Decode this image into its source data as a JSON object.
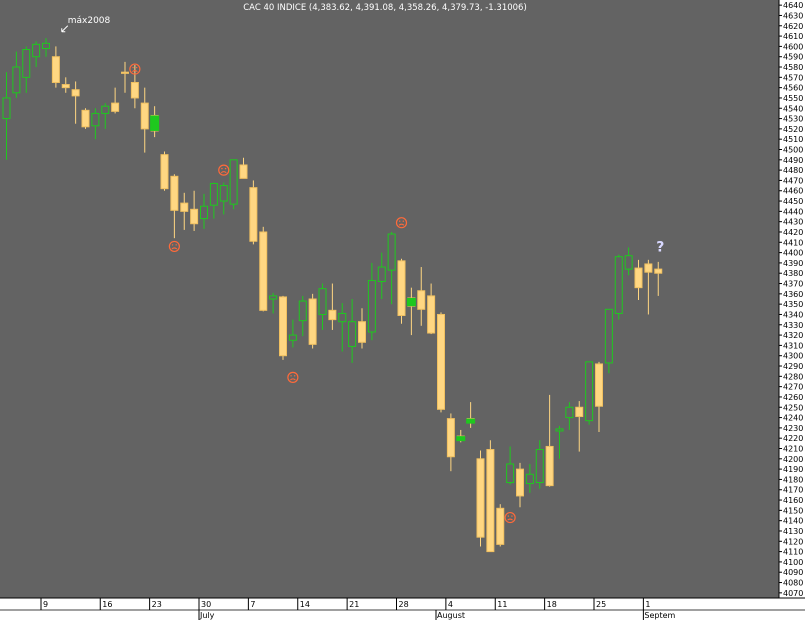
{
  "chart_data": {
    "type": "candlestick",
    "title": "CAC 40 INDICE (4,383.62, 4,391.08, 4,358.26, 4,379.73, -1.31006)",
    "ylim": [
      4065,
      4645
    ],
    "y_ticks": [
      4070,
      4080,
      4090,
      4100,
      4110,
      4120,
      4130,
      4140,
      4150,
      4160,
      4170,
      4180,
      4190,
      4200,
      4210,
      4220,
      4230,
      4240,
      4250,
      4260,
      4270,
      4280,
      4290,
      4300,
      4310,
      4320,
      4330,
      4340,
      4350,
      4360,
      4370,
      4380,
      4390,
      4400,
      4410,
      4420,
      4430,
      4440,
      4450,
      4460,
      4470,
      4480,
      4490,
      4500,
      4510,
      4520,
      4530,
      4540,
      4550,
      4560,
      4570,
      4580,
      4590,
      4600,
      4610,
      4620,
      4630,
      4640
    ],
    "x_day_ticks": [
      {
        "index": 4,
        "label": "9"
      },
      {
        "index": 10,
        "label": "16"
      },
      {
        "index": 15,
        "label": "23"
      },
      {
        "index": 20,
        "label": "30"
      },
      {
        "index": 25,
        "label": "7"
      },
      {
        "index": 30,
        "label": "14"
      },
      {
        "index": 35,
        "label": "21"
      },
      {
        "index": 40,
        "label": "28"
      },
      {
        "index": 45,
        "label": "4"
      },
      {
        "index": 50,
        "label": "11"
      },
      {
        "index": 55,
        "label": "18"
      },
      {
        "index": 60,
        "label": "25"
      },
      {
        "index": 65,
        "label": "1"
      }
    ],
    "x_month_labels": [
      {
        "index": 20,
        "label": "July"
      },
      {
        "index": 44,
        "label": "August"
      },
      {
        "index": 65,
        "label": "Septem"
      }
    ],
    "colors": {
      "background": "#636363",
      "up_body": "#636363",
      "up_border": "#1fc81f",
      "down_body": "#ffd782",
      "down_border": "#f0c060",
      "wick": "#ffd782",
      "axis_bg": "#ffffff",
      "highlight_green": "#1ec81e",
      "annotation": "#ff6a3a"
    },
    "candles": [
      {
        "o": 4530,
        "h": 4575,
        "l": 4490,
        "c": 4550
      },
      {
        "o": 4555,
        "h": 4595,
        "l": 4550,
        "c": 4580
      },
      {
        "o": 4570,
        "h": 4600,
        "l": 4555,
        "c": 4597
      },
      {
        "o": 4590,
        "h": 4605,
        "l": 4580,
        "c": 4602
      },
      {
        "o": 4598,
        "h": 4608,
        "l": 4590,
        "c": 4603
      },
      {
        "o": 4590,
        "h": 4600,
        "l": 4560,
        "c": 4565
      },
      {
        "o": 4563,
        "h": 4570,
        "l": 4555,
        "c": 4560
      },
      {
        "o": 4558,
        "h": 4566,
        "l": 4525,
        "c": 4552
      },
      {
        "o": 4538,
        "h": 4540,
        "l": 4520,
        "c": 4522
      },
      {
        "o": 4523,
        "h": 4540,
        "l": 4510,
        "c": 4535
      },
      {
        "o": 4535,
        "h": 4545,
        "l": 4520,
        "c": 4542
      },
      {
        "o": 4545,
        "h": 4560,
        "l": 4535,
        "c": 4537
      },
      {
        "o": 4575,
        "h": 4585,
        "l": 4555,
        "c": 4575
      },
      {
        "o": 4565,
        "h": 4582,
        "l": 4540,
        "c": 4550
      },
      {
        "o": 4545,
        "h": 4560,
        "l": 4497,
        "c": 4520
      },
      {
        "o": 4533,
        "h": 4542,
        "l": 4512,
        "c": 4518
      },
      {
        "o": 4495,
        "h": 4498,
        "l": 4460,
        "c": 4462
      },
      {
        "o": 4474,
        "h": 4476,
        "l": 4414,
        "c": 4441
      },
      {
        "o": 4448,
        "h": 4458,
        "l": 4422,
        "c": 4440
      },
      {
        "o": 4442,
        "h": 4460,
        "l": 4421,
        "c": 4428
      },
      {
        "o": 4433,
        "h": 4457,
        "l": 4423,
        "c": 4445
      },
      {
        "o": 4446,
        "h": 4468,
        "l": 4433,
        "c": 4467
      },
      {
        "o": 4450,
        "h": 4468,
        "l": 4437,
        "c": 4465
      },
      {
        "o": 4447,
        "h": 4490,
        "l": 4442,
        "c": 4490
      },
      {
        "o": 4485,
        "h": 4492,
        "l": 4472,
        "c": 4472
      },
      {
        "o": 4463,
        "h": 4470,
        "l": 4408,
        "c": 4411
      },
      {
        "o": 4420,
        "h": 4425,
        "l": 4343,
        "c": 4344
      },
      {
        "o": 4355,
        "h": 4361,
        "l": 4341,
        "c": 4358
      },
      {
        "o": 4357,
        "h": 4358,
        "l": 4296,
        "c": 4300
      },
      {
        "o": 4315,
        "h": 4335,
        "l": 4308,
        "c": 4320
      },
      {
        "o": 4334,
        "h": 4358,
        "l": 4319,
        "c": 4353
      },
      {
        "o": 4355,
        "h": 4360,
        "l": 4307,
        "c": 4311
      },
      {
        "o": 4340,
        "h": 4370,
        "l": 4325,
        "c": 4365
      },
      {
        "o": 4344,
        "h": 4370,
        "l": 4325,
        "c": 4335
      },
      {
        "o": 4333,
        "h": 4351,
        "l": 4304,
        "c": 4341
      },
      {
        "o": 4309,
        "h": 4355,
        "l": 4293,
        "c": 4333
      },
      {
        "o": 4333,
        "h": 4346,
        "l": 4307,
        "c": 4313
      },
      {
        "o": 4323,
        "h": 4390,
        "l": 4315,
        "c": 4373
      },
      {
        "o": 4372,
        "h": 4400,
        "l": 4355,
        "c": 4386
      },
      {
        "o": 4383,
        "h": 4420,
        "l": 4350,
        "c": 4418
      },
      {
        "o": 4392,
        "h": 4394,
        "l": 4331,
        "c": 4339
      },
      {
        "o": 4356,
        "h": 4366,
        "l": 4320,
        "c": 4348
      },
      {
        "o": 4363,
        "h": 4386,
        "l": 4329,
        "c": 4345
      },
      {
        "o": 4358,
        "h": 4370,
        "l": 4321,
        "c": 4322
      },
      {
        "o": 4340,
        "h": 4342,
        "l": 4245,
        "c": 4248
      },
      {
        "o": 4239,
        "h": 4244,
        "l": 4188,
        "c": 4202
      },
      {
        "o": 4222,
        "h": 4228,
        "l": 4216,
        "c": 4220
      },
      {
        "o": 4239,
        "h": 4255,
        "l": 4230,
        "c": 4237
      },
      {
        "o": 4200,
        "h": 4208,
        "l": 4115,
        "c": 4124
      },
      {
        "o": 4209,
        "h": 4218,
        "l": 4110,
        "c": 4110
      },
      {
        "o": 4152,
        "h": 4156,
        "l": 4115,
        "c": 4117
      },
      {
        "o": 4177,
        "h": 4212,
        "l": 4175,
        "c": 4195
      },
      {
        "o": 4190,
        "h": 4196,
        "l": 4153,
        "c": 4164
      },
      {
        "o": 4176,
        "h": 4195,
        "l": 4167,
        "c": 4185
      },
      {
        "o": 4177,
        "h": 4218,
        "l": 4171,
        "c": 4209
      },
      {
        "o": 4212,
        "h": 4262,
        "l": 4173,
        "c": 4174
      },
      {
        "o": 4227,
        "h": 4232,
        "l": 4200,
        "c": 4229
      },
      {
        "o": 4240,
        "h": 4255,
        "l": 4228,
        "c": 4250
      },
      {
        "o": 4250,
        "h": 4256,
        "l": 4207,
        "c": 4241
      },
      {
        "o": 4237,
        "h": 4293,
        "l": 4233,
        "c": 4294
      },
      {
        "o": 4292,
        "h": 4294,
        "l": 4226,
        "c": 4251
      },
      {
        "o": 4293,
        "h": 4345,
        "l": 4283,
        "c": 4345
      },
      {
        "o": 4341,
        "h": 4398,
        "l": 4335,
        "c": 4396
      },
      {
        "o": 4384,
        "h": 4405,
        "l": 4378,
        "c": 4397
      },
      {
        "o": 4385,
        "h": 4393,
        "l": 4354,
        "c": 4366
      },
      {
        "o": 4389,
        "h": 4393,
        "l": 4340,
        "c": 4381
      },
      {
        "o": 4384,
        "h": 4391,
        "l": 4358,
        "c": 4380
      }
    ],
    "highlights": [
      {
        "index": 15,
        "o": 4533,
        "c": 4518
      },
      {
        "index": 41,
        "o": 4356,
        "c": 4348
      },
      {
        "index": 46,
        "o": 4222,
        "c": 4220
      },
      {
        "index": 47,
        "o": 4239,
        "c": 4237
      }
    ],
    "frown_marks": [
      {
        "index": 13,
        "y": 4578
      },
      {
        "index": 22,
        "y": 4480
      },
      {
        "index": 17,
        "y": 4406
      },
      {
        "index": 29,
        "y": 4279
      },
      {
        "index": 40,
        "y": 4429
      },
      {
        "index": 51,
        "y": 4143
      }
    ],
    "annotations": [
      {
        "index": 6,
        "y": 4620,
        "text": "máx2008"
      }
    ],
    "question_mark": {
      "index": 66,
      "y": 4401,
      "text": "?"
    }
  }
}
